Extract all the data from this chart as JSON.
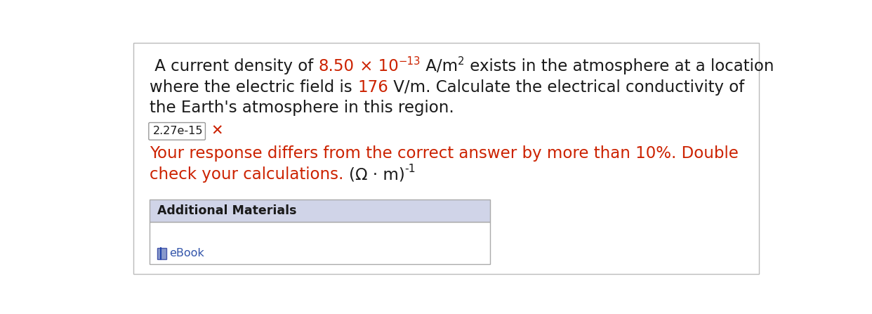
{
  "bg_color": "#ffffff",
  "black": "#1a1a1a",
  "red": "#cc2200",
  "blue_link": "#3355aa",
  "error_color": "#cc2200",
  "add_header_color": "#d0d4e8",
  "input_box_text": "2.27e-15",
  "error_line1": "Your response differs from the correct answer by more than 10%. Double",
  "error_line2_pre": "check your calculations. ",
  "error_line2_math": "(Ω · m)",
  "error_line2_sup": "-1",
  "additional_title": "Additional Materials",
  "additional_item": "eBook",
  "fs_main": 16.5,
  "fs_error": 16.5,
  "fs_input": 11.5,
  "fs_add_title": 12.5,
  "fs_add_item": 11.5
}
